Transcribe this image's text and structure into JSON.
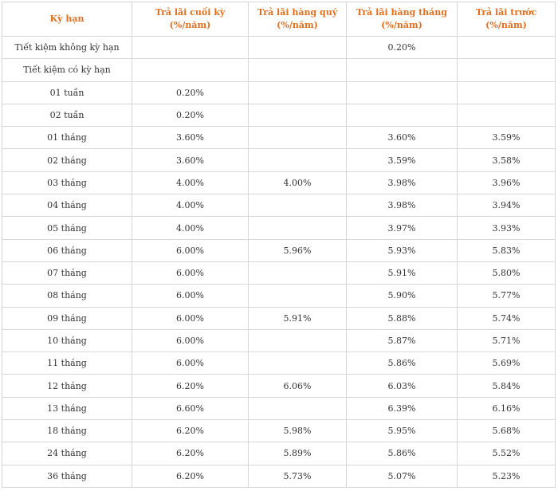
{
  "headers": [
    "Kỳ hạn",
    "Trả lãi cuối  kỳ (%/năm)",
    "Trả lãi hàng quý (%/năm)",
    "Trả lãi hàng tháng (%/năm)",
    "Trả lãi trước (%/năm)"
  ],
  "rows": [
    [
      "Tiết kiệm không kỳ hạn",
      "",
      "",
      "0.20%",
      ""
    ],
    [
      "Tiết kiệm có kỳ hạn",
      "",
      "",
      "",
      ""
    ],
    [
      "01 tuần",
      "0.20%",
      "",
      "",
      ""
    ],
    [
      "02 tuần",
      "0.20%",
      "",
      "",
      ""
    ],
    [
      "01 tháng",
      "3.60%",
      "",
      "3.60%",
      "3.59%"
    ],
    [
      "02 tháng",
      "3.60%",
      "",
      "3.59%",
      "3.58%"
    ],
    [
      "03 tháng",
      "4.00%",
      "4.00%",
      "3.98%",
      "3.96%"
    ],
    [
      "04 tháng",
      "4.00%",
      "",
      "3.98%",
      "3.94%"
    ],
    [
      "05 tháng",
      "4.00%",
      "",
      "3.97%",
      "3.93%"
    ],
    [
      "06 tháng",
      "6.00%",
      "5.96%",
      "5.93%",
      "5.83%"
    ],
    [
      "07 tháng",
      "6.00%",
      "",
      "5.91%",
      "5.80%"
    ],
    [
      "08 tháng",
      "6.00%",
      "",
      "5.90%",
      "5.77%"
    ],
    [
      "09 tháng",
      "6.00%",
      "5.91%",
      "5.88%",
      "5.74%"
    ],
    [
      "10 tháng",
      "6.00%",
      "",
      "5.87%",
      "5.71%"
    ],
    [
      "11 tháng",
      "6.00%",
      "",
      "5.86%",
      "5.69%"
    ],
    [
      "12 tháng",
      "6.20%",
      "6.06%",
      "6.03%",
      "5.84%"
    ],
    [
      "13 tháng",
      "6.60%",
      "",
      "6.39%",
      "6.16%"
    ],
    [
      "18 tháng",
      "6.20%",
      "5.98%",
      "5.95%",
      "5.68%"
    ],
    [
      "24 tháng",
      "6.20%",
      "5.89%",
      "5.86%",
      "5.52%"
    ],
    [
      "36 tháng",
      "6.20%",
      "5.73%",
      "5.07%",
      "5.23%"
    ]
  ]
}
